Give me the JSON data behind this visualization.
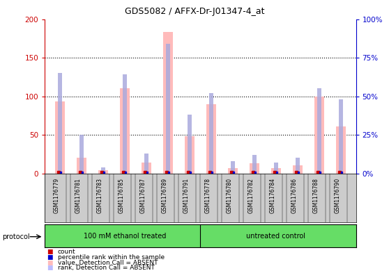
{
  "title": "GDS5082 / AFFX-Dr-J01347-4_at",
  "samples": [
    "GSM1176779",
    "GSM1176781",
    "GSM1176783",
    "GSM1176785",
    "GSM1176787",
    "GSM1176789",
    "GSM1176791",
    "GSM1176778",
    "GSM1176780",
    "GSM1176782",
    "GSM1176784",
    "GSM1176786",
    "GSM1176788",
    "GSM1176790"
  ],
  "pink_bars": [
    93,
    20,
    4,
    110,
    14,
    183,
    48,
    90,
    7,
    13,
    7,
    10,
    100,
    61
  ],
  "blue_bars_right": [
    65,
    25,
    4,
    64,
    13,
    84,
    38,
    52,
    8,
    12,
    7,
    10,
    55,
    48
  ],
  "red_dot_val": 2,
  "blue_dot_val": 1,
  "ylim_left": [
    0,
    200
  ],
  "ylim_right": [
    0,
    100
  ],
  "yticks_left": [
    0,
    50,
    100,
    150,
    200
  ],
  "yticks_right": [
    0,
    25,
    50,
    75,
    100
  ],
  "ytick_labels_left": [
    "0",
    "50",
    "100",
    "150",
    "200"
  ],
  "ytick_labels_right": [
    "0%",
    "25%",
    "50%",
    "75%",
    "100%"
  ],
  "group1_label": "100 mM ethanol treated",
  "group2_label": "untreated control",
  "group1_count": 7,
  "group2_count": 7,
  "protocol_label": "protocol",
  "legend_items": [
    {
      "label": "count",
      "color": "#cc0000"
    },
    {
      "label": "percentile rank within the sample",
      "color": "#0000cc"
    },
    {
      "label": "value, Detection Call = ABSENT",
      "color": "#ffbbbb"
    },
    {
      "label": "rank, Detection Call = ABSENT",
      "color": "#bbbbff"
    }
  ],
  "pink_color": "#ffbbbb",
  "blue_color": "#aaaadd",
  "red_color": "#cc0000",
  "dark_blue_color": "#0000cc",
  "left_tick_color": "#cc0000",
  "right_tick_color": "#0000cc",
  "green_color": "#66dd66",
  "gray_color": "#cccccc",
  "plot_bg": "#ffffff"
}
